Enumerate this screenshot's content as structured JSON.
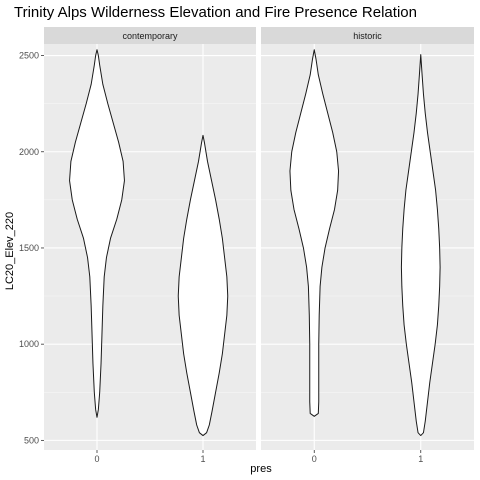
{
  "chart_data": {
    "type": "violin",
    "title": "Trinity Alps Wilderness Elevation and Fire Presence Relation",
    "xlabel": "pres",
    "ylabel": "LC20_Elev_220",
    "categories": [
      "0",
      "1"
    ],
    "y_ticks": [
      500,
      1000,
      1500,
      2000,
      2500
    ],
    "ylim": [
      450,
      2560
    ],
    "grid": true,
    "panel_background": "#ebebeb",
    "strip_background": "#d9d9d9",
    "violin_fill": "#ffffff",
    "facets": [
      {
        "label": "contemporary",
        "violins": [
          {
            "category": "0",
            "min": 620,
            "max": 2530,
            "profile": [
              [
                620,
                0.0
              ],
              [
                660,
                0.03
              ],
              [
                750,
                0.06
              ],
              [
                900,
                0.09
              ],
              [
                1050,
                0.11
              ],
              [
                1200,
                0.13
              ],
              [
                1350,
                0.16
              ],
              [
                1450,
                0.21
              ],
              [
                1550,
                0.3
              ],
              [
                1650,
                0.44
              ],
              [
                1750,
                0.55
              ],
              [
                1850,
                0.61
              ],
              [
                1950,
                0.58
              ],
              [
                2050,
                0.48
              ],
              [
                2150,
                0.36
              ],
              [
                2250,
                0.24
              ],
              [
                2350,
                0.13
              ],
              [
                2450,
                0.06
              ],
              [
                2500,
                0.03
              ],
              [
                2530,
                0.0
              ]
            ]
          },
          {
            "category": "1",
            "min": 525,
            "max": 2085,
            "profile": [
              [
                525,
                0.0
              ],
              [
                540,
                0.08
              ],
              [
                580,
                0.14
              ],
              [
                650,
                0.2
              ],
              [
                750,
                0.28
              ],
              [
                850,
                0.36
              ],
              [
                950,
                0.43
              ],
              [
                1050,
                0.48
              ],
              [
                1150,
                0.53
              ],
              [
                1250,
                0.55
              ],
              [
                1350,
                0.53
              ],
              [
                1450,
                0.48
              ],
              [
                1550,
                0.43
              ],
              [
                1650,
                0.36
              ],
              [
                1750,
                0.28
              ],
              [
                1850,
                0.19
              ],
              [
                1950,
                0.1
              ],
              [
                2050,
                0.03
              ],
              [
                2085,
                0.0
              ]
            ]
          }
        ]
      },
      {
        "label": "historic",
        "violins": [
          {
            "category": "0",
            "min": 625,
            "max": 2530,
            "profile": [
              [
                625,
                0.0
              ],
              [
                640,
                0.09
              ],
              [
                700,
                0.1
              ],
              [
                850,
                0.1
              ],
              [
                1000,
                0.1
              ],
              [
                1150,
                0.11
              ],
              [
                1300,
                0.13
              ],
              [
                1400,
                0.17
              ],
              [
                1500,
                0.24
              ],
              [
                1600,
                0.34
              ],
              [
                1700,
                0.45
              ],
              [
                1800,
                0.52
              ],
              [
                1900,
                0.54
              ],
              [
                2000,
                0.5
              ],
              [
                2100,
                0.41
              ],
              [
                2200,
                0.3
              ],
              [
                2300,
                0.19
              ],
              [
                2400,
                0.09
              ],
              [
                2480,
                0.04
              ],
              [
                2530,
                0.0
              ]
            ]
          },
          {
            "category": "1",
            "min": 525,
            "max": 2505,
            "profile": [
              [
                525,
                0.0
              ],
              [
                540,
                0.06
              ],
              [
                600,
                0.1
              ],
              [
                700,
                0.15
              ],
              [
                800,
                0.2
              ],
              [
                900,
                0.26
              ],
              [
                1000,
                0.32
              ],
              [
                1100,
                0.37
              ],
              [
                1200,
                0.4
              ],
              [
                1300,
                0.42
              ],
              [
                1400,
                0.43
              ],
              [
                1500,
                0.42
              ],
              [
                1600,
                0.4
              ],
              [
                1700,
                0.37
              ],
              [
                1800,
                0.33
              ],
              [
                1900,
                0.27
              ],
              [
                2000,
                0.21
              ],
              [
                2100,
                0.15
              ],
              [
                2200,
                0.1
              ],
              [
                2300,
                0.06
              ],
              [
                2400,
                0.03
              ],
              [
                2505,
                0.0
              ]
            ]
          }
        ]
      }
    ]
  }
}
